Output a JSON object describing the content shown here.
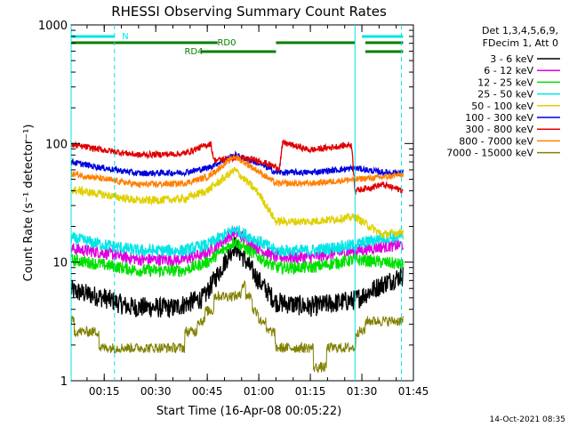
{
  "chart_data": {
    "type": "line",
    "title": "RHESSI Observing Summary Count Rates",
    "xlabel": "Start Time (16-Apr-08 00:05:22)",
    "ylabel": "Count Rate (s⁻¹ detector⁻¹)",
    "y_scale": "log",
    "ylim": [
      1,
      1000
    ],
    "xlim": [
      "00:05:22",
      "01:45:00"
    ],
    "x_ticks": [
      "00:15",
      "00:30",
      "00:45",
      "01:00",
      "01:15",
      "01:30",
      "01:45"
    ],
    "y_ticks": [
      "1",
      "10",
      "100",
      "1000"
    ],
    "legend_header": [
      "Det 1,3,4,5,6,9,",
      "FDecim 1, Att 0"
    ],
    "legend_position": "right",
    "timestamp": "14-Oct-2021 08:35",
    "flags": [
      {
        "label": "N",
        "color": "#00e5e5",
        "intervals": [
          [
            "00:05:22",
            "00:18:00"
          ],
          [
            "01:30:00",
            "01:42:00"
          ]
        ]
      },
      {
        "label": "RD0",
        "color": "#007f00",
        "intervals": [
          [
            "00:05:22",
            "00:48:00"
          ],
          [
            "01:05:00",
            "01:28:00"
          ],
          [
            "01:31:00",
            "01:42:00"
          ]
        ]
      },
      {
        "label": "RD4",
        "color": "#007f00",
        "intervals": [
          [
            "00:43:00",
            "01:05:00"
          ],
          [
            "01:31:00",
            "01:42:00"
          ]
        ]
      }
    ],
    "vlines": [
      {
        "t": "00:05:22",
        "style": "solid"
      },
      {
        "t": "00:18:00",
        "style": "dashed"
      },
      {
        "t": "01:28:00",
        "style": "solid"
      },
      {
        "t": "01:41:30",
        "style": "dashed"
      }
    ],
    "series": [
      {
        "name": "3 - 6 keV",
        "color": "#000000",
        "noise": 0.05,
        "points": [
          [
            "00:05",
            "5.8"
          ],
          [
            "00:15",
            "5"
          ],
          [
            "00:22",
            "4.2"
          ],
          [
            "00:35",
            "4.1"
          ],
          [
            "00:44",
            "5.0"
          ],
          [
            "00:53",
            "14"
          ],
          [
            "01:00",
            "7"
          ],
          [
            "01:05",
            "4.6"
          ],
          [
            "01:15",
            "4.2"
          ],
          [
            "01:28",
            "4.8"
          ],
          [
            "01:36",
            "6.5"
          ],
          [
            "01:42",
            "7.8"
          ]
        ]
      },
      {
        "name": "6 - 12 keV",
        "color": "#e000e0",
        "noise": 0.03,
        "points": [
          [
            "00:05",
            "13"
          ],
          [
            "00:15",
            "12"
          ],
          [
            "00:25",
            "10.5"
          ],
          [
            "00:38",
            "10.5"
          ],
          [
            "00:45",
            "12"
          ],
          [
            "00:53",
            "18"
          ],
          [
            "01:00",
            "13"
          ],
          [
            "01:05",
            "11"
          ],
          [
            "01:15",
            "11"
          ],
          [
            "01:28",
            "12.5"
          ],
          [
            "01:36",
            "13.5"
          ],
          [
            "01:42",
            "14"
          ]
        ]
      },
      {
        "name": "12 - 25 keV",
        "color": "#00e000",
        "noise": 0.03,
        "points": [
          [
            "00:05",
            "10.5"
          ],
          [
            "00:15",
            "9.5"
          ],
          [
            "00:25",
            "8.5"
          ],
          [
            "00:38",
            "8.5"
          ],
          [
            "00:45",
            "10"
          ],
          [
            "00:53",
            "15"
          ],
          [
            "01:00",
            "11"
          ],
          [
            "01:05",
            "9"
          ],
          [
            "01:15",
            "9"
          ],
          [
            "01:28",
            "10.5"
          ],
          [
            "01:36",
            "10"
          ],
          [
            "01:42",
            "9.5"
          ]
        ]
      },
      {
        "name": "25 - 50 keV",
        "color": "#00e5e5",
        "noise": 0.03,
        "points": [
          [
            "00:05",
            "16"
          ],
          [
            "00:15",
            "14"
          ],
          [
            "00:25",
            "12.5"
          ],
          [
            "00:38",
            "12.5"
          ],
          [
            "00:45",
            "14"
          ],
          [
            "00:53",
            "19"
          ],
          [
            "01:00",
            "15"
          ],
          [
            "01:05",
            "12.5"
          ],
          [
            "01:15",
            "12.5"
          ],
          [
            "01:28",
            "14"
          ],
          [
            "01:36",
            "16"
          ],
          [
            "01:42",
            "16.5"
          ]
        ]
      },
      {
        "name": "50 - 100 keV",
        "color": "#e0d000",
        "noise": 0.02,
        "points": [
          [
            "00:05",
            "41"
          ],
          [
            "00:15",
            "37"
          ],
          [
            "00:25",
            "33"
          ],
          [
            "00:38",
            "34"
          ],
          [
            "00:45",
            "40"
          ],
          [
            "00:53",
            "60"
          ],
          [
            "01:00",
            "38"
          ],
          [
            "01:05",
            "22"
          ],
          [
            "01:15",
            "22"
          ],
          [
            "01:28",
            "24"
          ],
          [
            "01:36",
            "17"
          ],
          [
            "01:42",
            "18"
          ]
        ]
      },
      {
        "name": "100 - 300 keV",
        "color": "#0000e0",
        "noise": 0.015,
        "points": [
          [
            "00:05",
            "70"
          ],
          [
            "00:15",
            "62"
          ],
          [
            "00:25",
            "56"
          ],
          [
            "00:38",
            "57"
          ],
          [
            "00:45",
            "62"
          ],
          [
            "00:53",
            "80"
          ],
          [
            "01:00",
            "68"
          ],
          [
            "01:05",
            "57"
          ],
          [
            "01:15",
            "57"
          ],
          [
            "01:28",
            "62"
          ],
          [
            "01:36",
            "57"
          ],
          [
            "01:42",
            "57"
          ]
        ]
      },
      {
        "name": "300 - 800 keV",
        "color": "#e00000",
        "noise": 0.015,
        "points": [
          [
            "00:05",
            "98"
          ],
          [
            "00:15",
            "88"
          ],
          [
            "00:25",
            "80"
          ],
          [
            "00:38",
            "82"
          ],
          [
            "00:46",
            "100"
          ],
          [
            "00:47",
            "72"
          ],
          [
            "00:53",
            "76"
          ],
          [
            "01:00",
            "72"
          ],
          [
            "01:06",
            "62"
          ],
          [
            "01:07",
            "102"
          ],
          [
            "01:15",
            "88"
          ],
          [
            "01:27",
            "98"
          ],
          [
            "01:28",
            "40"
          ],
          [
            "01:36",
            "45"
          ],
          [
            "01:42",
            "40"
          ]
        ]
      },
      {
        "name": "800 - 7000 keV",
        "color": "#ff8000",
        "noise": 0.015,
        "points": [
          [
            "00:05",
            "56"
          ],
          [
            "00:15",
            "50"
          ],
          [
            "00:25",
            "45"
          ],
          [
            "00:38",
            "46"
          ],
          [
            "00:45",
            "52"
          ],
          [
            "00:53",
            "78"
          ],
          [
            "01:00",
            "58"
          ],
          [
            "01:05",
            "46"
          ],
          [
            "01:15",
            "46"
          ],
          [
            "01:28",
            "50"
          ],
          [
            "01:36",
            "52"
          ],
          [
            "01:42",
            "55"
          ]
        ]
      },
      {
        "name": "7000 - 15000 keV",
        "color": "#808000",
        "noise": 0.0,
        "points": [
          [
            "00:05",
            "3.0"
          ],
          [
            "00:12",
            "2.5"
          ],
          [
            "00:18",
            "1.6"
          ],
          [
            "00:30",
            "1.6"
          ],
          [
            "00:40",
            "2.4"
          ],
          [
            "00:48",
            "5"
          ],
          [
            "00:56",
            "6"
          ],
          [
            "01:00",
            "3.5"
          ],
          [
            "01:05",
            "2.2"
          ],
          [
            "01:18",
            "1.5"
          ],
          [
            "01:28",
            "2.2"
          ],
          [
            "01:32",
            "3.2"
          ],
          [
            "01:42",
            "3.5"
          ]
        ]
      }
    ]
  }
}
